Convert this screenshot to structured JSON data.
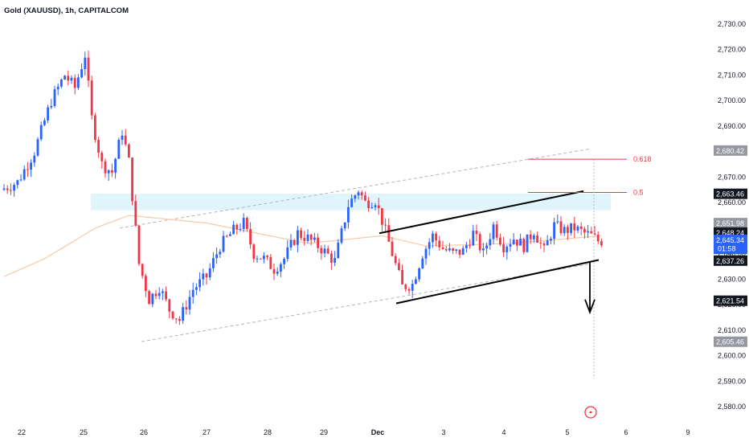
{
  "header": {
    "title": "Gold (XAUUSD), 1h, CAPITALCOM"
  },
  "colors": {
    "up": "#2962ff",
    "down": "#f23645",
    "ma": "#f7c9a5",
    "channel_dashed": "#b2b5be",
    "zone": "#e0f4fb",
    "fib": "#f23645",
    "badge_dark": "#131722",
    "badge_grey": "#9598a1",
    "current": "#2962ff"
  },
  "chart_data": {
    "type": "candlestick",
    "title": "Gold (XAUUSD), 1h, CAPITALCOM",
    "ylim": [
      2573,
      2733
    ],
    "x_ticks": [
      "22",
      "25",
      "26",
      "27",
      "28",
      "29",
      "Dec",
      "3",
      "4",
      "5",
      "6",
      "9"
    ],
    "y_ticks": [
      "2,580.00",
      "2,590.00",
      "2,600.00",
      "2,610.00",
      "2,620.00",
      "2,630.00",
      "2,640.00",
      "2,650.00",
      "2,660.00",
      "2,670.00",
      "2,680.00",
      "2,690.00",
      "2,700.00",
      "2,710.00",
      "2,720.00",
      "2,730.00"
    ],
    "y_tick_values": [
      2580,
      2590,
      2600,
      2610,
      2620,
      2630,
      2640,
      2650,
      2660,
      2670,
      2680,
      2690,
      2700,
      2710,
      2720,
      2730
    ],
    "price_keypoints": [
      [
        0,
        2665
      ],
      [
        5,
        2668
      ],
      [
        10,
        2680
      ],
      [
        15,
        2700
      ],
      [
        19,
        2710
      ],
      [
        22,
        2705
      ],
      [
        25,
        2718
      ],
      [
        27,
        2693
      ],
      [
        30,
        2675
      ],
      [
        33,
        2672
      ],
      [
        36,
        2688
      ],
      [
        38,
        2676
      ],
      [
        41,
        2636
      ],
      [
        44,
        2622
      ],
      [
        47,
        2627
      ],
      [
        50,
        2618
      ],
      [
        53,
        2614
      ],
      [
        57,
        2626
      ],
      [
        61,
        2631
      ],
      [
        65,
        2643
      ],
      [
        69,
        2649
      ],
      [
        72,
        2652
      ],
      [
        75,
        2640
      ],
      [
        78,
        2638
      ],
      [
        81,
        2634
      ],
      [
        84,
        2638
      ],
      [
        88,
        2648
      ],
      [
        91,
        2646
      ],
      [
        95,
        2642
      ],
      [
        99,
        2637
      ],
      [
        103,
        2659
      ],
      [
        106,
        2665
      ],
      [
        108,
        2660
      ],
      [
        111,
        2661
      ],
      [
        113,
        2653
      ],
      [
        116,
        2640
      ],
      [
        119,
        2627
      ],
      [
        122,
        2628
      ],
      [
        125,
        2640
      ],
      [
        128,
        2647
      ],
      [
        131,
        2642
      ],
      [
        134,
        2640
      ],
      [
        137,
        2641
      ],
      [
        140,
        2648
      ],
      [
        143,
        2640
      ],
      [
        146,
        2651
      ],
      [
        149,
        2643
      ],
      [
        152,
        2646
      ],
      [
        155,
        2643
      ],
      [
        158,
        2649
      ],
      [
        161,
        2641
      ],
      [
        164,
        2651
      ],
      [
        167,
        2649
      ],
      [
        170,
        2650
      ],
      [
        173,
        2648
      ],
      [
        175,
        2647
      ],
      [
        177,
        2645
      ]
    ],
    "moving_average": [
      [
        0,
        2631
      ],
      [
        12,
        2638
      ],
      [
        27,
        2650
      ],
      [
        37,
        2655
      ],
      [
        60,
        2652
      ],
      [
        90,
        2644
      ],
      [
        112,
        2647
      ],
      [
        125,
        2643
      ],
      [
        150,
        2644
      ],
      [
        177,
        2647
      ]
    ],
    "fib_levels": [
      {
        "label": "0.618",
        "price": 2677
      },
      {
        "label": "0.5",
        "price": 2664
      }
    ],
    "price_badges": [
      {
        "text": "2,680.42",
        "price": 2680.42,
        "style": "grey"
      },
      {
        "text": "2,663.46",
        "price": 2663.46,
        "style": "dark"
      },
      {
        "text": "2,651.98",
        "price": 2651.98,
        "style": "grey"
      },
      {
        "text": "2,648.24",
        "price": 2648.24,
        "style": "dark"
      },
      {
        "text": "2,645.34",
        "price": 2645.34,
        "style": "current",
        "sub": "01:58"
      },
      {
        "text": "2,637.26",
        "price": 2637.26,
        "style": "dark"
      },
      {
        "text": "2,621.54",
        "price": 2621.54,
        "style": "dark"
      },
      {
        "text": "2,605.46",
        "price": 2605.46,
        "style": "grey"
      }
    ]
  }
}
